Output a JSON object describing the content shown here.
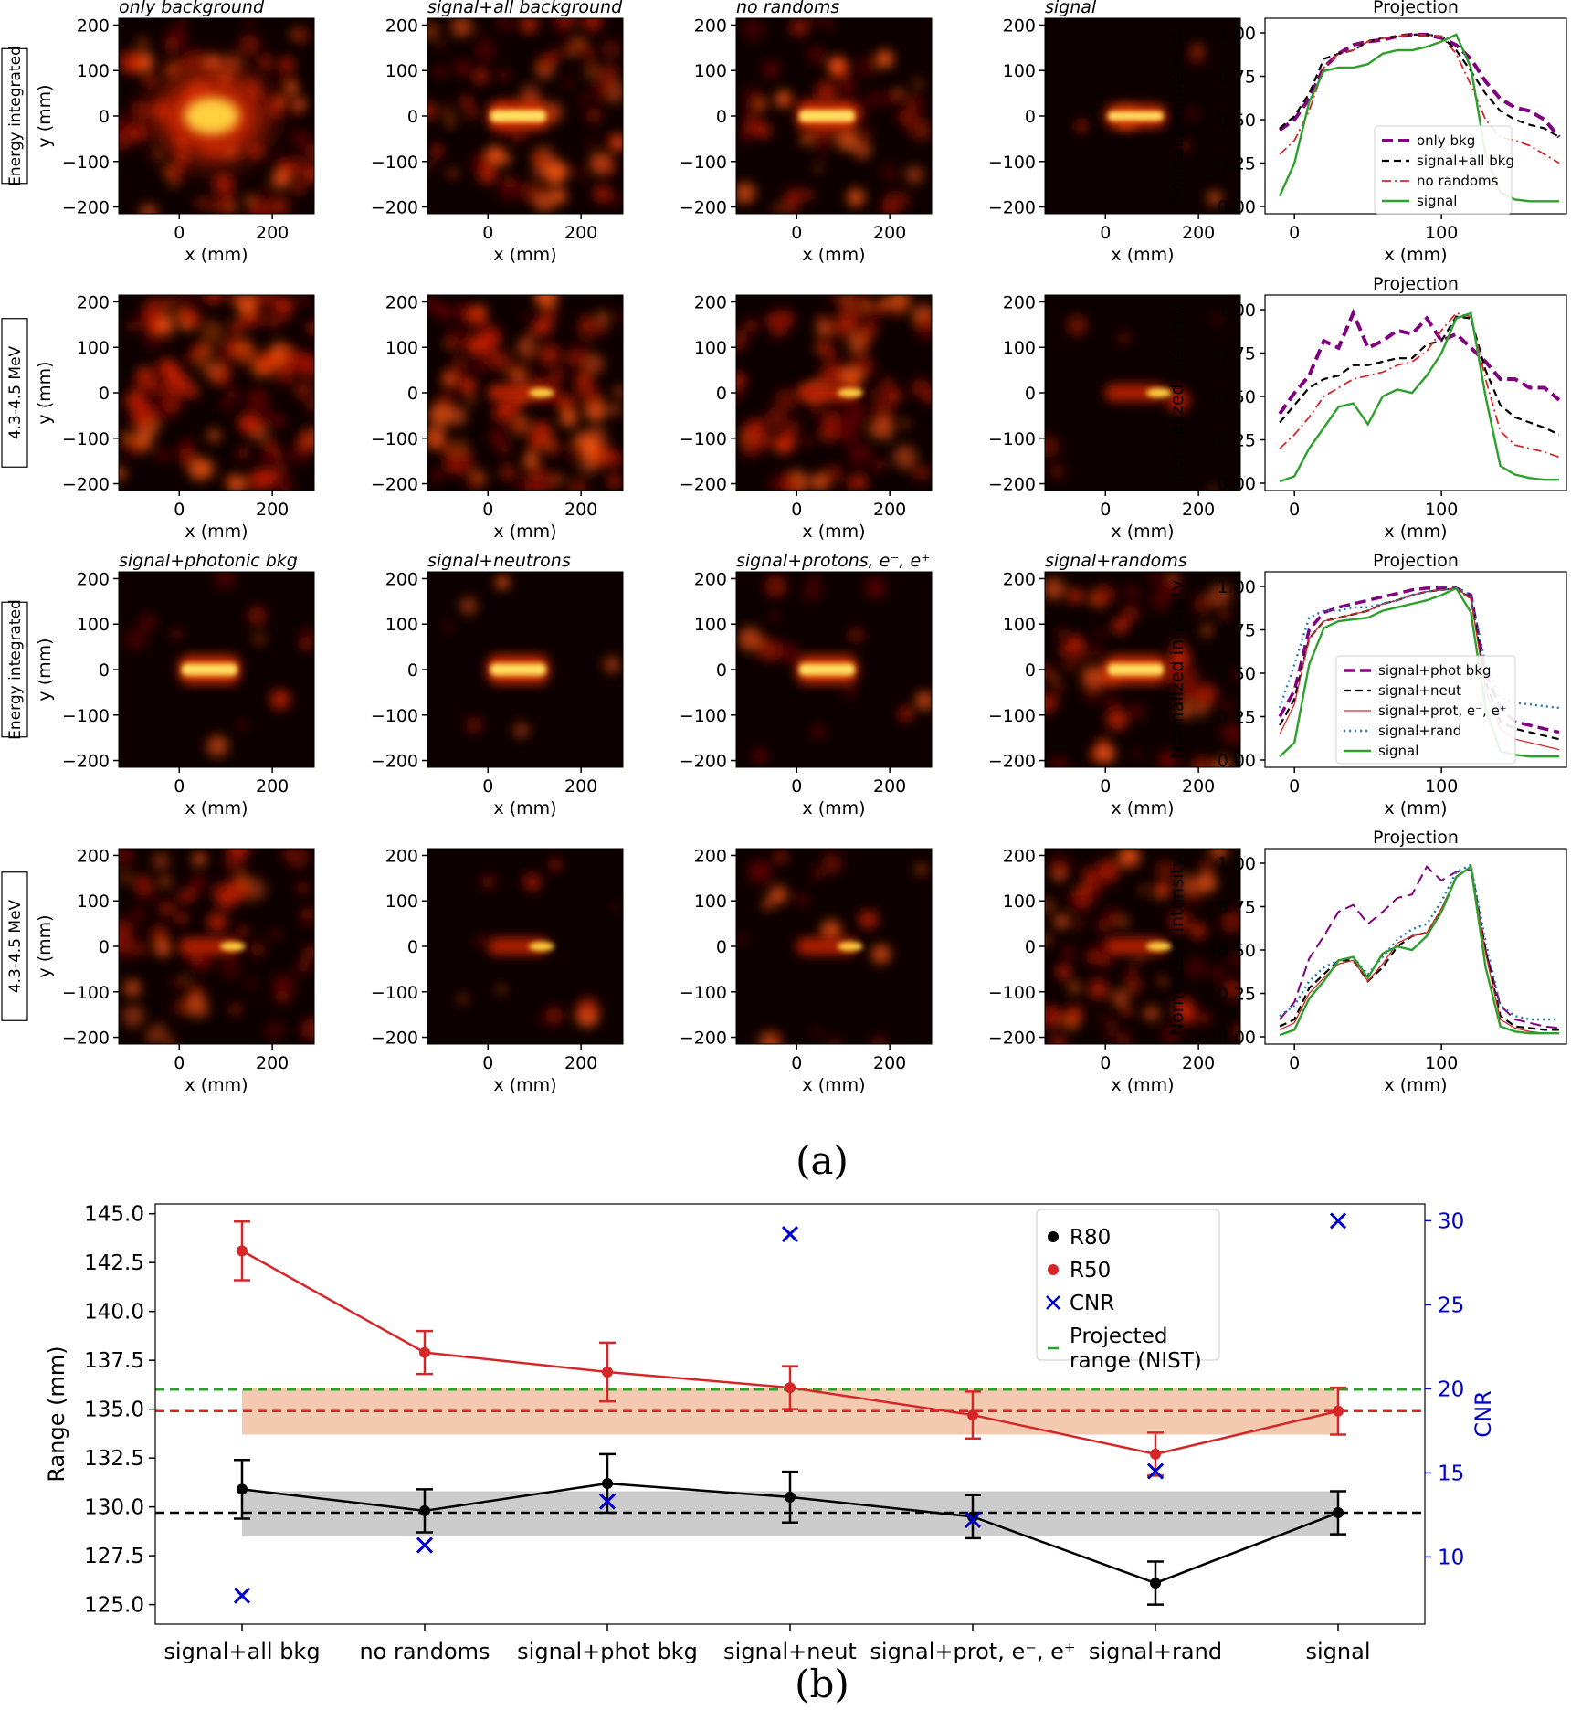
{
  "panel_a_label": "(a)",
  "panel_b_label": "(b)",
  "row_labels": [
    "Energy integrated",
    "4.3-4.5 MeV",
    "Energy integrated",
    "4.3-4.5 MeV"
  ],
  "image_titles": {
    "row1": [
      "only background",
      "signal+all background",
      "no randoms",
      "signal"
    ],
    "row3": [
      "signal+photonic bkg",
      "signal+neutrons",
      "signal+protons, e⁻, e⁺",
      "signal+randoms"
    ]
  },
  "image_axes": {
    "xlabel": "x (mm)",
    "ylabel": "y (mm)",
    "xticks": [
      "0",
      "200"
    ],
    "yticks": [
      "200",
      "100",
      "0",
      "−100",
      "−200"
    ]
  },
  "projection": {
    "title": "Projection",
    "ylabel": "Normalized intensity",
    "xlabel": "x (mm)",
    "xticks": [
      "0",
      "100"
    ],
    "yticks": [
      "1.00",
      "0.75",
      "0.50",
      "0.25",
      "0.00"
    ],
    "legend1": [
      "only bkg",
      "signal+all bkg",
      "no randoms",
      "signal"
    ],
    "legend3": [
      "signal+phot bkg",
      "signal+neut",
      "signal+prot, e⁻, e⁺",
      "signal+rand",
      "signal"
    ]
  },
  "colors": {
    "purple": "#800080",
    "black": "#000000",
    "red": "#d62728",
    "green": "#2ca02c",
    "teal": "#1f77b4",
    "r50": "#d62728",
    "cnr": "#0000cc",
    "nist": "#2ca02c",
    "r50_band": "#f3c9b0",
    "r80_band": "#cccccc"
  },
  "chart_data": [
    {
      "type": "line",
      "name": "Projection row 1 (Energy integrated)",
      "title": "Projection",
      "xlabel": "x (mm)",
      "ylabel": "Normalized intensity",
      "xlim": [
        -20,
        185
      ],
      "ylim": [
        0,
        1.0
      ],
      "x": [
        -10,
        0,
        10,
        20,
        30,
        40,
        50,
        60,
        70,
        80,
        90,
        100,
        110,
        120,
        130,
        140,
        150,
        160,
        170,
        180
      ],
      "series": [
        {
          "name": "only bkg",
          "values": [
            0.44,
            0.5,
            0.62,
            0.8,
            0.88,
            0.93,
            0.95,
            0.96,
            0.98,
            0.99,
            0.99,
            0.97,
            0.93,
            0.85,
            0.72,
            0.62,
            0.57,
            0.55,
            0.5,
            0.4
          ]
        },
        {
          "name": "signal+all bkg",
          "values": [
            0.45,
            0.52,
            0.65,
            0.85,
            0.88,
            0.9,
            0.95,
            0.97,
            0.98,
            0.99,
            0.99,
            0.98,
            0.9,
            0.78,
            0.65,
            0.55,
            0.5,
            0.47,
            0.45,
            0.4
          ]
        },
        {
          "name": "no randoms",
          "values": [
            0.3,
            0.38,
            0.55,
            0.8,
            0.88,
            0.9,
            0.95,
            0.97,
            0.98,
            0.99,
            0.99,
            0.98,
            0.88,
            0.7,
            0.5,
            0.4,
            0.38,
            0.35,
            0.3,
            0.25
          ]
        },
        {
          "name": "signal",
          "values": [
            0.06,
            0.25,
            0.6,
            0.78,
            0.8,
            0.8,
            0.82,
            0.88,
            0.9,
            0.9,
            0.92,
            0.95,
            0.99,
            0.8,
            0.3,
            0.08,
            0.04,
            0.03,
            0.03,
            0.03
          ]
        }
      ]
    },
    {
      "type": "line",
      "name": "Projection row 2 (4.3-4.5 MeV)",
      "title": "Projection",
      "xlabel": "x (mm)",
      "ylabel": "Normalized intensity",
      "xlim": [
        -20,
        185
      ],
      "ylim": [
        0,
        1.0
      ],
      "x": [
        -10,
        0,
        10,
        20,
        30,
        40,
        50,
        60,
        70,
        80,
        90,
        100,
        110,
        120,
        130,
        140,
        150,
        160,
        170,
        180
      ],
      "series": [
        {
          "name": "only bkg",
          "values": [
            0.4,
            0.52,
            0.62,
            0.82,
            0.78,
            0.98,
            0.78,
            0.82,
            0.88,
            0.86,
            0.95,
            0.82,
            0.86,
            0.78,
            0.7,
            0.6,
            0.6,
            0.55,
            0.55,
            0.48
          ]
        },
        {
          "name": "signal+all bkg",
          "values": [
            0.35,
            0.45,
            0.55,
            0.6,
            0.62,
            0.68,
            0.68,
            0.7,
            0.72,
            0.72,
            0.8,
            0.82,
            0.96,
            0.95,
            0.65,
            0.45,
            0.38,
            0.35,
            0.32,
            0.28
          ]
        },
        {
          "name": "no randoms",
          "values": [
            0.2,
            0.28,
            0.38,
            0.5,
            0.55,
            0.6,
            0.62,
            0.64,
            0.68,
            0.7,
            0.76,
            0.88,
            0.98,
            0.96,
            0.6,
            0.3,
            0.22,
            0.2,
            0.18,
            0.15
          ]
        },
        {
          "name": "signal",
          "values": [
            0.01,
            0.04,
            0.2,
            0.32,
            0.44,
            0.46,
            0.34,
            0.5,
            0.54,
            0.52,
            0.62,
            0.75,
            0.95,
            0.98,
            0.5,
            0.1,
            0.05,
            0.03,
            0.02,
            0.02
          ]
        }
      ]
    },
    {
      "type": "line",
      "name": "Projection row 3 (Energy integrated)",
      "title": "Projection",
      "xlabel": "x (mm)",
      "ylabel": "Normalized intensity",
      "xlim": [
        -20,
        185
      ],
      "ylim": [
        0,
        1.0
      ],
      "x": [
        -10,
        0,
        10,
        20,
        30,
        40,
        50,
        60,
        70,
        80,
        90,
        100,
        110,
        120,
        130,
        140,
        150,
        160,
        170,
        180
      ],
      "series": [
        {
          "name": "signal+phot bkg",
          "values": [
            0.25,
            0.4,
            0.75,
            0.85,
            0.88,
            0.9,
            0.92,
            0.94,
            0.96,
            0.98,
            0.99,
            0.99,
            0.99,
            0.95,
            0.5,
            0.3,
            0.22,
            0.2,
            0.18,
            0.16
          ]
        },
        {
          "name": "signal+neut",
          "values": [
            0.2,
            0.35,
            0.7,
            0.8,
            0.82,
            0.84,
            0.86,
            0.9,
            0.92,
            0.95,
            0.97,
            0.98,
            0.99,
            0.93,
            0.45,
            0.22,
            0.18,
            0.16,
            0.14,
            0.12
          ]
        },
        {
          "name": "signal+prot, e⁻, e⁺",
          "values": [
            0.15,
            0.32,
            0.7,
            0.8,
            0.82,
            0.84,
            0.86,
            0.9,
            0.92,
            0.95,
            0.97,
            0.98,
            0.99,
            0.93,
            0.4,
            0.18,
            0.12,
            0.1,
            0.08,
            0.06
          ]
        },
        {
          "name": "signal+rand",
          "values": [
            0.3,
            0.55,
            0.82,
            0.86,
            0.86,
            0.88,
            0.88,
            0.9,
            0.92,
            0.95,
            0.97,
            0.98,
            0.99,
            0.95,
            0.55,
            0.36,
            0.33,
            0.32,
            0.31,
            0.3
          ]
        },
        {
          "name": "signal",
          "values": [
            0.02,
            0.1,
            0.55,
            0.76,
            0.8,
            0.81,
            0.82,
            0.86,
            0.88,
            0.9,
            0.92,
            0.95,
            0.99,
            0.85,
            0.3,
            0.05,
            0.03,
            0.02,
            0.02,
            0.02
          ]
        }
      ]
    },
    {
      "type": "line",
      "name": "Projection row 4 (4.3-4.5 MeV)",
      "title": "Projection",
      "xlabel": "x (mm)",
      "ylabel": "Normalized intensity",
      "xlim": [
        -20,
        185
      ],
      "ylim": [
        0,
        1.0
      ],
      "x": [
        -10,
        0,
        10,
        20,
        30,
        40,
        50,
        60,
        70,
        80,
        90,
        100,
        110,
        120,
        130,
        140,
        150,
        160,
        170,
        180
      ],
      "series": [
        {
          "name": "signal+phot bkg",
          "values": [
            0.1,
            0.2,
            0.45,
            0.58,
            0.72,
            0.76,
            0.65,
            0.72,
            0.8,
            0.82,
            0.98,
            0.9,
            0.95,
            0.96,
            0.5,
            0.18,
            0.1,
            0.08,
            0.06,
            0.05
          ]
        },
        {
          "name": "signal+neut",
          "values": [
            0.06,
            0.1,
            0.28,
            0.36,
            0.44,
            0.44,
            0.32,
            0.4,
            0.52,
            0.58,
            0.6,
            0.72,
            0.92,
            0.98,
            0.5,
            0.12,
            0.06,
            0.05,
            0.04,
            0.04
          ]
        },
        {
          "name": "signal+prot, e⁻, e⁺",
          "values": [
            0.04,
            0.08,
            0.25,
            0.34,
            0.42,
            0.44,
            0.32,
            0.42,
            0.54,
            0.58,
            0.6,
            0.74,
            0.92,
            0.98,
            0.48,
            0.1,
            0.05,
            0.03,
            0.02,
            0.02
          ]
        },
        {
          "name": "signal+rand",
          "values": [
            0.12,
            0.18,
            0.32,
            0.4,
            0.44,
            0.46,
            0.36,
            0.46,
            0.56,
            0.62,
            0.65,
            0.78,
            0.95,
            0.99,
            0.55,
            0.18,
            0.12,
            0.1,
            0.1,
            0.1
          ]
        },
        {
          "name": "signal",
          "values": [
            0.01,
            0.04,
            0.22,
            0.32,
            0.44,
            0.46,
            0.34,
            0.48,
            0.52,
            0.5,
            0.58,
            0.72,
            0.92,
            0.98,
            0.4,
            0.06,
            0.03,
            0.02,
            0.02,
            0.02
          ]
        }
      ]
    },
    {
      "type": "line",
      "name": "Range and CNR comparison",
      "xlabel": "",
      "ylabel": "Range (mm)",
      "y2label": "CNR",
      "categories": [
        "signal+all bkg",
        "no randoms",
        "signal+phot bkg",
        "signal+neut",
        "signal+prot, e⁻, e⁺",
        "signal+rand",
        "signal"
      ],
      "ylim": [
        124.0,
        145.5
      ],
      "y2lim": [
        6.0,
        31.0
      ],
      "yticks": [
        125.0,
        127.5,
        130.0,
        132.5,
        135.0,
        137.5,
        140.0,
        142.5,
        145.0
      ],
      "y2ticks": [
        10,
        15,
        20,
        25,
        30
      ],
      "series": [
        {
          "name": "R80",
          "values": [
            130.9,
            129.8,
            131.2,
            130.5,
            129.5,
            126.1,
            129.7
          ],
          "errors": [
            1.5,
            1.1,
            1.5,
            1.3,
            1.1,
            1.1,
            1.1
          ]
        },
        {
          "name": "R50",
          "values": [
            143.1,
            137.9,
            136.9,
            136.1,
            134.7,
            132.7,
            134.9
          ],
          "errors": [
            1.5,
            1.1,
            1.5,
            1.1,
            1.2,
            1.1,
            1.2
          ]
        },
        {
          "name": "CNR",
          "axis": "right",
          "values": [
            7.7,
            10.7,
            13.3,
            29.2,
            12.2,
            15.1,
            30.0
          ]
        }
      ],
      "reference_lines": [
        {
          "name": "Projected range (NIST)",
          "axis": "left",
          "value": 136.0
        },
        {
          "axis": "left",
          "value": 134.9
        },
        {
          "axis": "left",
          "value": 129.7
        }
      ],
      "bands": [
        {
          "axis": "left",
          "from": 133.7,
          "to": 136.1
        },
        {
          "axis": "left",
          "from": 128.5,
          "to": 130.8
        }
      ],
      "legend": [
        "R80",
        "R50",
        "CNR",
        "Projected range (NIST)"
      ],
      "legend_placement": "top-right"
    }
  ]
}
